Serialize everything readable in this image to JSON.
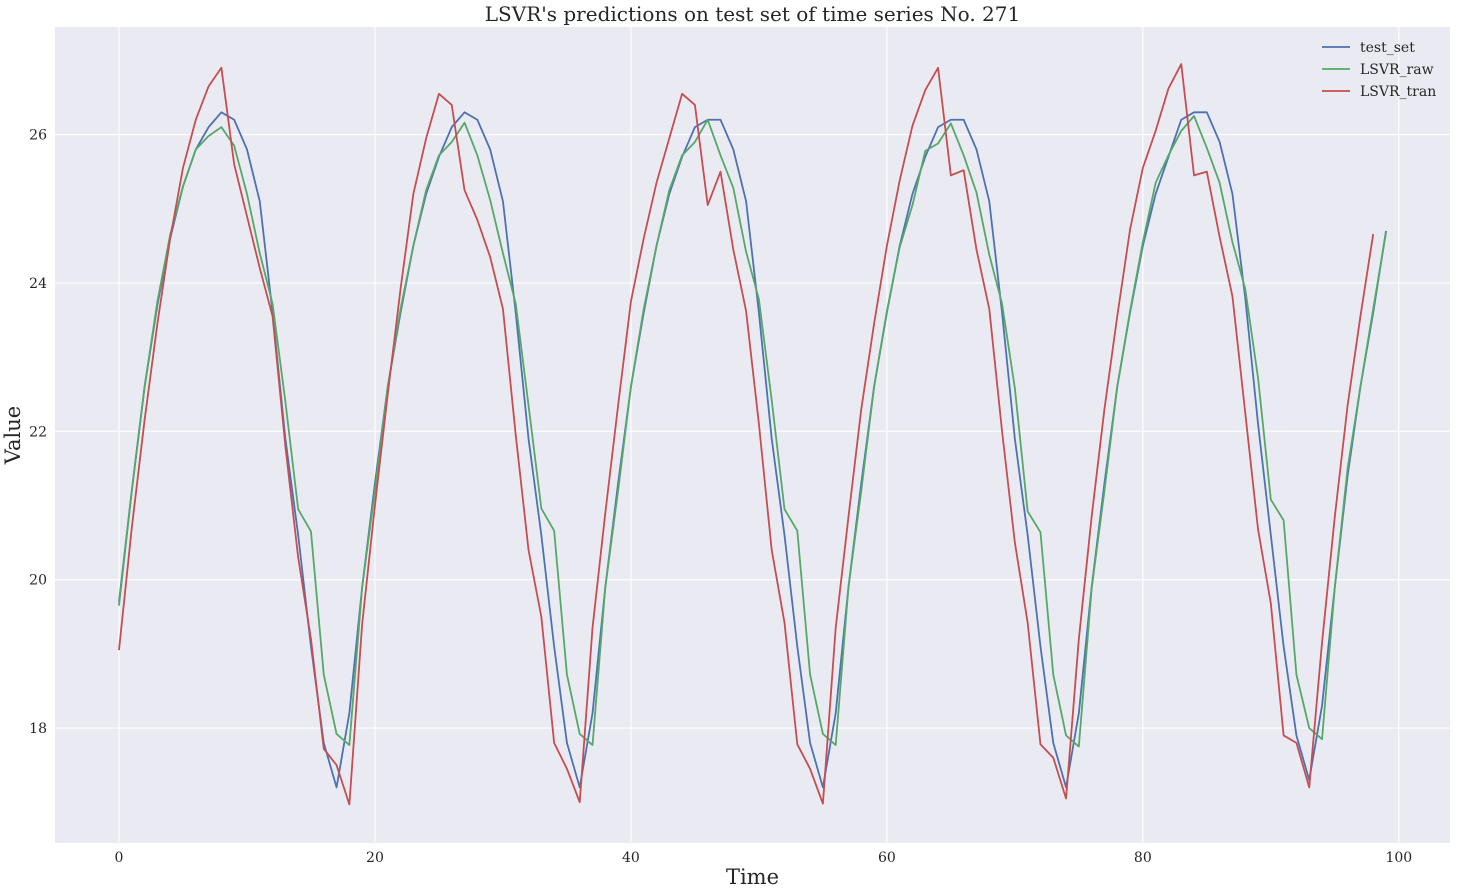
{
  "chart_data": {
    "type": "line",
    "title": "LSVR's predictions on test set of time series No. 271",
    "xlabel": "Time",
    "ylabel": "Value",
    "xlim": [
      -5,
      104
    ],
    "ylim": [
      16.45,
      27.45
    ],
    "xticks": [
      0,
      20,
      40,
      60,
      80,
      100
    ],
    "yticks": [
      18,
      20,
      22,
      24,
      26
    ],
    "grid": true,
    "legend_position": "top-right",
    "background": "#eaeaf2",
    "series": [
      {
        "name": "test_set",
        "color": "#4c72b0",
        "values": [
          19.7,
          21.2,
          22.6,
          23.7,
          24.6,
          25.3,
          25.8,
          26.1,
          26.3,
          26.2,
          25.8,
          25.1,
          23.6,
          21.9,
          20.6,
          19.1,
          17.8,
          17.2,
          18.2,
          19.9,
          21.3,
          22.6,
          23.6,
          24.5,
          25.2,
          25.7,
          26.1,
          26.3,
          26.2,
          25.8,
          25.1,
          23.6,
          21.9,
          20.6,
          19.1,
          17.8,
          17.2,
          18.2,
          19.9,
          21.3,
          22.6,
          23.6,
          24.5,
          25.2,
          25.7,
          26.1,
          26.2,
          26.2,
          25.8,
          25.1,
          23.6,
          21.9,
          20.6,
          19.1,
          17.8,
          17.2,
          18.2,
          19.9,
          21.3,
          22.6,
          23.6,
          24.5,
          25.2,
          25.7,
          26.1,
          26.2,
          26.2,
          25.8,
          25.1,
          23.6,
          21.9,
          20.6,
          19.1,
          17.8,
          17.2,
          18.2,
          19.9,
          21.3,
          22.6,
          23.6,
          24.5,
          25.2,
          25.7,
          26.2,
          26.3,
          26.3,
          25.9,
          25.2,
          23.8,
          22.1,
          20.6,
          19.1,
          17.9,
          17.3,
          18.3,
          19.9,
          21.4,
          22.6,
          23.6,
          24.7
        ]
      },
      {
        "name": "LSVR_raw",
        "color": "#55a868",
        "values": [
          19.65,
          21.2,
          22.6,
          23.75,
          24.65,
          25.3,
          25.8,
          25.98,
          26.1,
          25.85,
          25.2,
          24.4,
          23.72,
          22.4,
          20.95,
          20.65,
          18.72,
          17.92,
          17.77,
          19.9,
          21.2,
          22.6,
          23.65,
          24.5,
          25.25,
          25.72,
          25.9,
          26.16,
          25.72,
          25.12,
          24.4,
          23.72,
          22.35,
          20.96,
          20.66,
          18.72,
          17.92,
          17.77,
          19.9,
          21.2,
          22.6,
          23.65,
          24.5,
          25.25,
          25.72,
          25.9,
          26.2,
          25.72,
          25.28,
          24.42,
          23.78,
          22.42,
          20.95,
          20.66,
          18.72,
          17.92,
          17.77,
          19.9,
          21.2,
          22.6,
          23.62,
          24.48,
          25.05,
          25.78,
          25.88,
          26.15,
          25.72,
          25.22,
          24.38,
          23.72,
          22.58,
          20.92,
          20.64,
          18.72,
          17.9,
          17.75,
          19.88,
          21.2,
          22.6,
          23.62,
          24.55,
          25.35,
          25.72,
          26.05,
          26.25,
          25.82,
          25.35,
          24.55,
          23.92,
          22.72,
          21.08,
          20.8,
          18.72,
          18.0,
          17.85,
          19.9,
          21.5,
          22.6,
          23.65,
          24.68
        ]
      },
      {
        "name": "LSVR_tran",
        "color": "#c44e52",
        "values": [
          19.05,
          20.7,
          22.15,
          23.45,
          24.6,
          25.55,
          26.2,
          26.65,
          26.9,
          25.6,
          24.9,
          24.2,
          23.55,
          21.8,
          20.3,
          19.2,
          17.72,
          17.5,
          16.97,
          19.4,
          21.0,
          22.5,
          23.92,
          25.2,
          25.95,
          26.55,
          26.4,
          25.25,
          24.85,
          24.35,
          23.65,
          21.95,
          20.4,
          19.5,
          17.8,
          17.45,
          17.0,
          19.35,
          20.9,
          22.35,
          23.75,
          24.6,
          25.35,
          25.95,
          26.55,
          26.4,
          25.05,
          25.5,
          24.45,
          23.62,
          22.1,
          20.4,
          19.42,
          17.78,
          17.45,
          16.98,
          19.35,
          20.85,
          22.3,
          23.45,
          24.5,
          25.38,
          26.12,
          26.6,
          26.9,
          25.45,
          25.52,
          24.45,
          23.65,
          22.0,
          20.5,
          19.42,
          17.78,
          17.6,
          17.05,
          19.2,
          20.85,
          22.3,
          23.55,
          24.72,
          25.55,
          26.05,
          26.62,
          26.95,
          25.45,
          25.5,
          24.62,
          23.82,
          22.25,
          20.68,
          19.68,
          17.9,
          17.8,
          17.2,
          19.15,
          20.85,
          22.35,
          23.55,
          24.66
        ]
      }
    ]
  }
}
